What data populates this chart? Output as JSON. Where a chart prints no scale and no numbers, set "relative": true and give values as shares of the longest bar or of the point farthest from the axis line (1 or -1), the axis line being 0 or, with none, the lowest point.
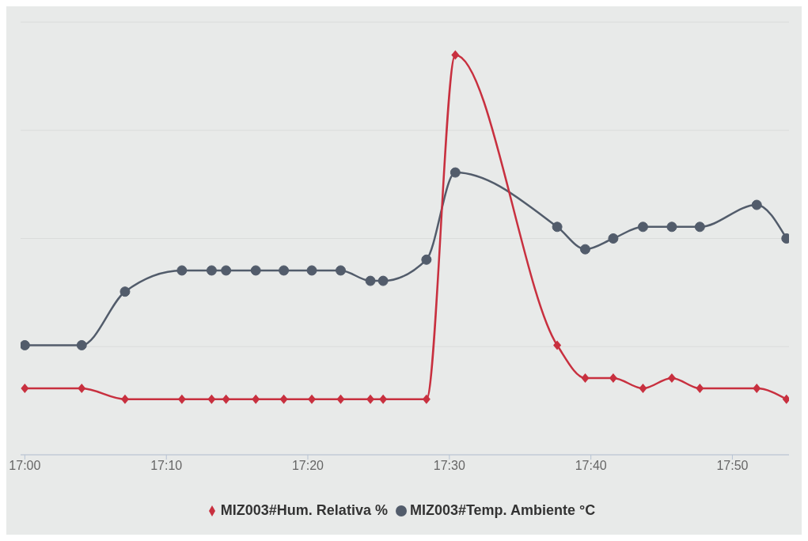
{
  "chart_data": {
    "type": "line",
    "relative": true,
    "grid": "y",
    "legend": "bottom",
    "line_style": "solid",
    "xlim": [
      16.995,
      17.9
    ],
    "xticks": [
      {
        "value": 17,
        "label": "17:00"
      },
      {
        "value": 17.1667,
        "label": "17:10"
      },
      {
        "value": 17.3333,
        "label": "17:20"
      },
      {
        "value": 17.5,
        "label": "17:30"
      },
      {
        "value": 17.6667,
        "label": "17:40"
      },
      {
        "value": 17.8333,
        "label": "17:50"
      }
    ],
    "series": [
      {
        "name": "MIZ003#Temp. Ambiente °C",
        "color": "#525c6b",
        "marker": "circle",
        "x": [
          17,
          17.067,
          17.118,
          17.185,
          17.22,
          17.237,
          17.272,
          17.305,
          17.338,
          17.372,
          17.407,
          17.422,
          17.473,
          17.507,
          17.627,
          17.66,
          17.693,
          17.728,
          17.762,
          17.795,
          17.862,
          17.897
        ],
        "values": [
          0.274,
          0.274,
          0.408,
          0.461,
          0.461,
          0.461,
          0.461,
          0.461,
          0.461,
          0.461,
          0.435,
          0.435,
          0.488,
          0.706,
          0.57,
          0.514,
          0.541,
          0.57,
          0.57,
          0.57,
          0.625,
          0.541
        ]
      },
      {
        "name": "MIZ003#Hum. Relativa %",
        "color": "#c8303f",
        "marker": "diamond",
        "x": [
          17,
          17.067,
          17.118,
          17.185,
          17.22,
          17.237,
          17.272,
          17.305,
          17.338,
          17.372,
          17.407,
          17.422,
          17.473,
          17.507,
          17.627,
          17.66,
          17.693,
          17.728,
          17.762,
          17.795,
          17.862,
          17.897
        ],
        "values": [
          0.166,
          0.166,
          0.139,
          0.139,
          0.139,
          0.139,
          0.139,
          0.139,
          0.139,
          0.139,
          0.139,
          0.139,
          0.139,
          1,
          0.274,
          0.192,
          0.192,
          0.166,
          0.192,
          0.166,
          0.166,
          0.139
        ]
      }
    ]
  }
}
